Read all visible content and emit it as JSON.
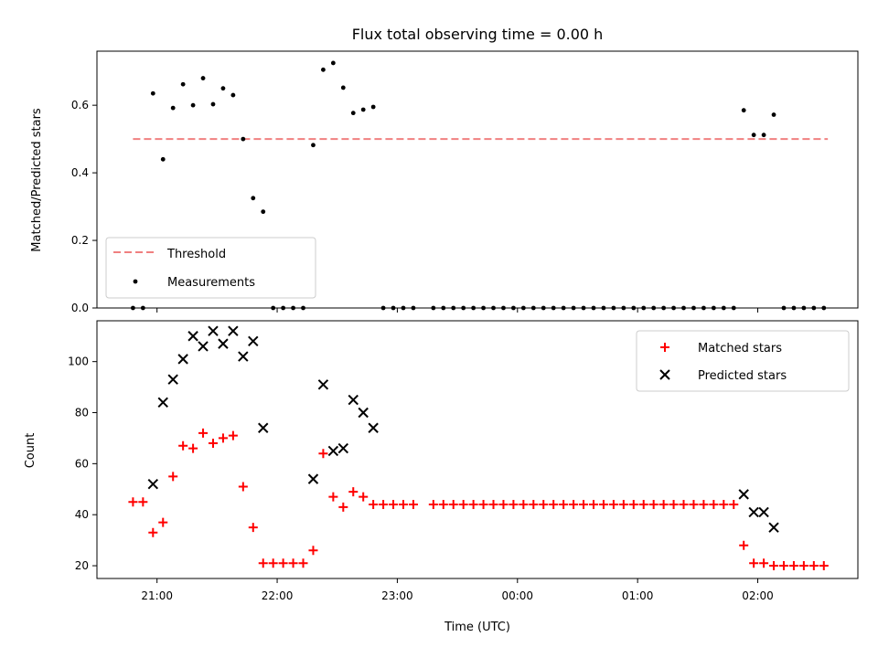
{
  "chart_data": [
    {
      "type": "scatter",
      "title": "Flux total observing time = 0.00 h",
      "xlabel": "",
      "ylabel": "Matched/Predicted stars",
      "x_is_time": true,
      "xlim": [
        "20:30",
        "02:50"
      ],
      "ylim": [
        0,
        0.76
      ],
      "yticks": [
        0.0,
        0.2,
        0.4,
        0.6
      ],
      "ytick_labels": [
        "0.0",
        "0.2",
        "0.4",
        "0.6"
      ],
      "xticks": [
        "21:00",
        "22:00",
        "23:00",
        "00:00",
        "01:00",
        "02:00"
      ],
      "xtick_labels_shown": false,
      "legend": {
        "placement": "lower-left",
        "entries": [
          "Threshold",
          "Measurements"
        ]
      },
      "threshold": {
        "name": "Threshold",
        "value": 0.5,
        "x_range": [
          "20:48",
          "02:35"
        ],
        "color": "#f08080",
        "style": "dashed"
      },
      "series": [
        {
          "name": "Measurements",
          "marker": "dot",
          "color": "#000000",
          "points": [
            [
              "20:48",
              0.0
            ],
            [
              "20:53",
              0.0
            ],
            [
              "20:58",
              0.635
            ],
            [
              "21:03",
              0.44
            ],
            [
              "21:08",
              0.592
            ],
            [
              "21:13",
              0.662
            ],
            [
              "21:18",
              0.6
            ],
            [
              "21:23",
              0.68
            ],
            [
              "21:28",
              0.603
            ],
            [
              "21:33",
              0.65
            ],
            [
              "21:38",
              0.63
            ],
            [
              "21:43",
              0.5
            ],
            [
              "21:48",
              0.325
            ],
            [
              "21:53",
              0.285
            ],
            [
              "21:58",
              0.0
            ],
            [
              "22:03",
              0.0
            ],
            [
              "22:08",
              0.0
            ],
            [
              "22:13",
              0.0
            ],
            [
              "22:18",
              0.482
            ],
            [
              "22:23",
              0.705
            ],
            [
              "22:28",
              0.725
            ],
            [
              "22:33",
              0.652
            ],
            [
              "22:38",
              0.577
            ],
            [
              "22:43",
              0.587
            ],
            [
              "22:48",
              0.595
            ],
            [
              "22:53",
              0.0
            ],
            [
              "22:58",
              0.0
            ],
            [
              "23:03",
              0.0
            ],
            [
              "23:08",
              0.0
            ],
            [
              "23:18",
              0.0
            ],
            [
              "23:23",
              0.0
            ],
            [
              "23:28",
              0.0
            ],
            [
              "23:33",
              0.0
            ],
            [
              "23:38",
              0.0
            ],
            [
              "23:43",
              0.0
            ],
            [
              "23:48",
              0.0
            ],
            [
              "23:53",
              0.0
            ],
            [
              "23:58",
              0.0
            ],
            [
              "00:03",
              0.0
            ],
            [
              "00:08",
              0.0
            ],
            [
              "00:13",
              0.0
            ],
            [
              "00:18",
              0.0
            ],
            [
              "00:23",
              0.0
            ],
            [
              "00:28",
              0.0
            ],
            [
              "00:33",
              0.0
            ],
            [
              "00:38",
              0.0
            ],
            [
              "00:43",
              0.0
            ],
            [
              "00:48",
              0.0
            ],
            [
              "00:53",
              0.0
            ],
            [
              "00:58",
              0.0
            ],
            [
              "01:03",
              0.0
            ],
            [
              "01:08",
              0.0
            ],
            [
              "01:13",
              0.0
            ],
            [
              "01:18",
              0.0
            ],
            [
              "01:23",
              0.0
            ],
            [
              "01:28",
              0.0
            ],
            [
              "01:33",
              0.0
            ],
            [
              "01:38",
              0.0
            ],
            [
              "01:43",
              0.0
            ],
            [
              "01:48",
              0.0
            ],
            [
              "01:53",
              0.585
            ],
            [
              "01:58",
              0.512
            ],
            [
              "02:03",
              0.512
            ],
            [
              "02:08",
              0.572
            ],
            [
              "02:13",
              0.0
            ],
            [
              "02:18",
              0.0
            ],
            [
              "02:23",
              0.0
            ],
            [
              "02:28",
              0.0
            ],
            [
              "02:33",
              0.0
            ]
          ]
        }
      ]
    },
    {
      "type": "scatter",
      "title": "",
      "xlabel": "Time (UTC)",
      "ylabel": "Count",
      "x_is_time": true,
      "xlim": [
        "20:30",
        "02:50"
      ],
      "ylim": [
        15,
        116
      ],
      "yticks": [
        20,
        40,
        60,
        80,
        100
      ],
      "ytick_labels": [
        "20",
        "40",
        "60",
        "80",
        "100"
      ],
      "xticks": [
        "21:00",
        "22:00",
        "23:00",
        "00:00",
        "01:00",
        "02:00"
      ],
      "xtick_labels": [
        "21:00",
        "22:00",
        "23:00",
        "00:00",
        "01:00",
        "02:00"
      ],
      "legend": {
        "placement": "upper-right",
        "entries": [
          "Matched stars",
          "Predicted stars"
        ]
      },
      "series": [
        {
          "name": "Matched stars",
          "marker": "plus",
          "color": "#ff0000",
          "points": [
            [
              "20:48",
              45
            ],
            [
              "20:53",
              45
            ],
            [
              "20:58",
              33
            ],
            [
              "21:03",
              37
            ],
            [
              "21:08",
              55
            ],
            [
              "21:13",
              67
            ],
            [
              "21:18",
              66
            ],
            [
              "21:23",
              72
            ],
            [
              "21:28",
              68
            ],
            [
              "21:33",
              70
            ],
            [
              "21:38",
              71
            ],
            [
              "21:43",
              51
            ],
            [
              "21:48",
              35
            ],
            [
              "21:53",
              21
            ],
            [
              "21:58",
              21
            ],
            [
              "22:03",
              21
            ],
            [
              "22:08",
              21
            ],
            [
              "22:13",
              21
            ],
            [
              "22:18",
              26
            ],
            [
              "22:23",
              64
            ],
            [
              "22:28",
              47
            ],
            [
              "22:33",
              43
            ],
            [
              "22:38",
              49
            ],
            [
              "22:43",
              47
            ],
            [
              "22:48",
              44
            ],
            [
              "22:53",
              44
            ],
            [
              "22:58",
              44
            ],
            [
              "23:03",
              44
            ],
            [
              "23:08",
              44
            ],
            [
              "23:18",
              44
            ],
            [
              "23:23",
              44
            ],
            [
              "23:28",
              44
            ],
            [
              "23:33",
              44
            ],
            [
              "23:38",
              44
            ],
            [
              "23:43",
              44
            ],
            [
              "23:48",
              44
            ],
            [
              "23:53",
              44
            ],
            [
              "23:58",
              44
            ],
            [
              "00:03",
              44
            ],
            [
              "00:08",
              44
            ],
            [
              "00:13",
              44
            ],
            [
              "00:18",
              44
            ],
            [
              "00:23",
              44
            ],
            [
              "00:28",
              44
            ],
            [
              "00:33",
              44
            ],
            [
              "00:38",
              44
            ],
            [
              "00:43",
              44
            ],
            [
              "00:48",
              44
            ],
            [
              "00:53",
              44
            ],
            [
              "00:58",
              44
            ],
            [
              "01:03",
              44
            ],
            [
              "01:08",
              44
            ],
            [
              "01:13",
              44
            ],
            [
              "01:18",
              44
            ],
            [
              "01:23",
              44
            ],
            [
              "01:28",
              44
            ],
            [
              "01:33",
              44
            ],
            [
              "01:38",
              44
            ],
            [
              "01:43",
              44
            ],
            [
              "01:48",
              44
            ],
            [
              "01:53",
              28
            ],
            [
              "01:58",
              21
            ],
            [
              "02:03",
              21
            ],
            [
              "02:08",
              20
            ],
            [
              "02:13",
              20
            ],
            [
              "02:18",
              20
            ],
            [
              "02:23",
              20
            ],
            [
              "02:28",
              20
            ],
            [
              "02:33",
              20
            ]
          ]
        },
        {
          "name": "Predicted stars",
          "marker": "x",
          "color": "#000000",
          "points": [
            [
              "20:58",
              52
            ],
            [
              "21:03",
              84
            ],
            [
              "21:08",
              93
            ],
            [
              "21:13",
              101
            ],
            [
              "21:18",
              110
            ],
            [
              "21:23",
              106
            ],
            [
              "21:28",
              112
            ],
            [
              "21:33",
              107
            ],
            [
              "21:38",
              112
            ],
            [
              "21:43",
              102
            ],
            [
              "21:48",
              108
            ],
            [
              "21:53",
              74
            ],
            [
              "22:18",
              54
            ],
            [
              "22:23",
              91
            ],
            [
              "22:28",
              65
            ],
            [
              "22:33",
              66
            ],
            [
              "22:38",
              85
            ],
            [
              "22:43",
              80
            ],
            [
              "22:48",
              74
            ],
            [
              "01:53",
              48
            ],
            [
              "01:58",
              41
            ],
            [
              "02:03",
              41
            ],
            [
              "02:08",
              35
            ]
          ]
        }
      ]
    }
  ]
}
